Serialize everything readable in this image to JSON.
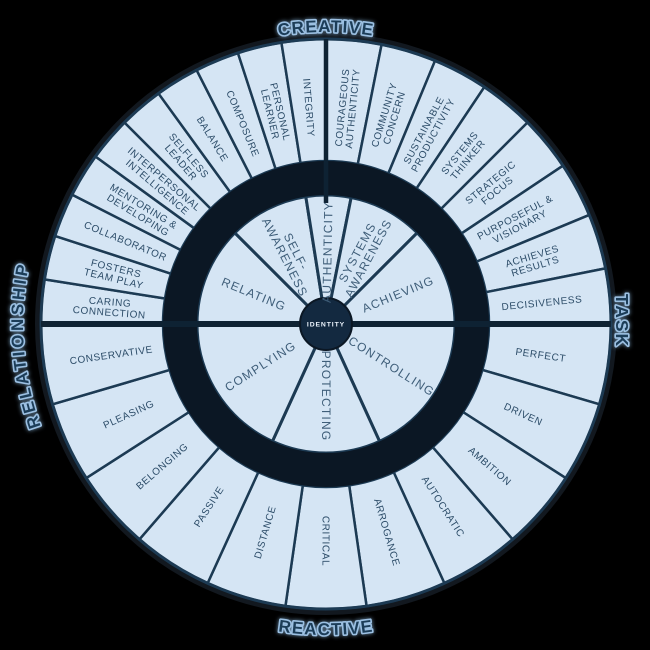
{
  "diagram": {
    "center_label": "IDENTITY",
    "axis_labels": {
      "top": "CREATIVE",
      "right": "TASK",
      "bottom": "REACTIVE",
      "left": "RELATIONSHIP"
    },
    "outer_segments": {
      "top_left": [
        [
          "CARING",
          "CONNECTION"
        ],
        [
          "FOSTERS",
          "TEAM PLAY"
        ],
        [
          "COLLABORATOR"
        ],
        [
          "MENTORING &",
          "DEVELOPING"
        ],
        [
          "INTERPERSONAL",
          "INTELLIGENCE"
        ],
        [
          "SELFLESS",
          "LEADER"
        ],
        [
          "BALANCE"
        ],
        [
          "COMPOSURE"
        ],
        [
          "PERSONAL",
          "LEARNER"
        ],
        [
          "INTEGRITY"
        ]
      ],
      "top_right": [
        [
          "COURAGEOUS",
          "AUTHENTICITY"
        ],
        [
          "COMMUNITY",
          "CONCERN"
        ],
        [
          "SUSTAINABLE",
          "PRODUCTIVITY"
        ],
        [
          "SYSTEMS",
          "THINKER"
        ],
        [
          "STRATEGIC",
          "FOCUS"
        ],
        [
          "PURPOSEFUL &",
          "VISIONARY"
        ],
        [
          "ACHIEVES",
          "RESULTS"
        ],
        [
          "DECISIVENESS"
        ]
      ],
      "bottom": [
        [
          "PERFECT"
        ],
        [
          "DRIVEN"
        ],
        [
          "AMBITION"
        ],
        [
          "AUTOCRATIC"
        ],
        [
          "ARROGANCE"
        ],
        [
          "CRITICAL"
        ],
        [
          "DISTANCE"
        ],
        [
          "PASSIVE"
        ],
        [
          "BELONGING"
        ],
        [
          "PLEASING"
        ],
        [
          "CONSERVATIVE"
        ]
      ]
    },
    "inner_dimensions": {
      "top": [
        {
          "label": [
            "RELATING"
          ],
          "segments": 5
        },
        {
          "label": [
            "SELF-",
            "AWARENESS"
          ],
          "segments": 4
        },
        {
          "label": [
            "AUTHENTICITY"
          ],
          "segments": 2
        },
        {
          "label": [
            "SYSTEMS",
            "AWARENESS"
          ],
          "segments": 3
        },
        {
          "label": [
            "ACHIEVING"
          ],
          "segments": 4
        }
      ],
      "bottom": [
        {
          "label": [
            "CONTROLLING"
          ],
          "segments": 4
        },
        {
          "label": [
            "PROTECTING"
          ],
          "segments": 3
        },
        {
          "label": [
            "COMPLYING"
          ],
          "segments": 4
        }
      ]
    },
    "colors": {
      "background": "#000000",
      "segment_fill": "#d5e5f4",
      "line": "#1c3a53",
      "thick_line": "#0e2233",
      "gap_ring": "#0b1724",
      "segment_text": "#2c4c68",
      "dimension_text": "#3f5e79",
      "axis_text": "#1c3c59",
      "axis_glow": "#9cc0e2",
      "center_fill": "#132940",
      "center_text": "#eaf2fb"
    }
  }
}
